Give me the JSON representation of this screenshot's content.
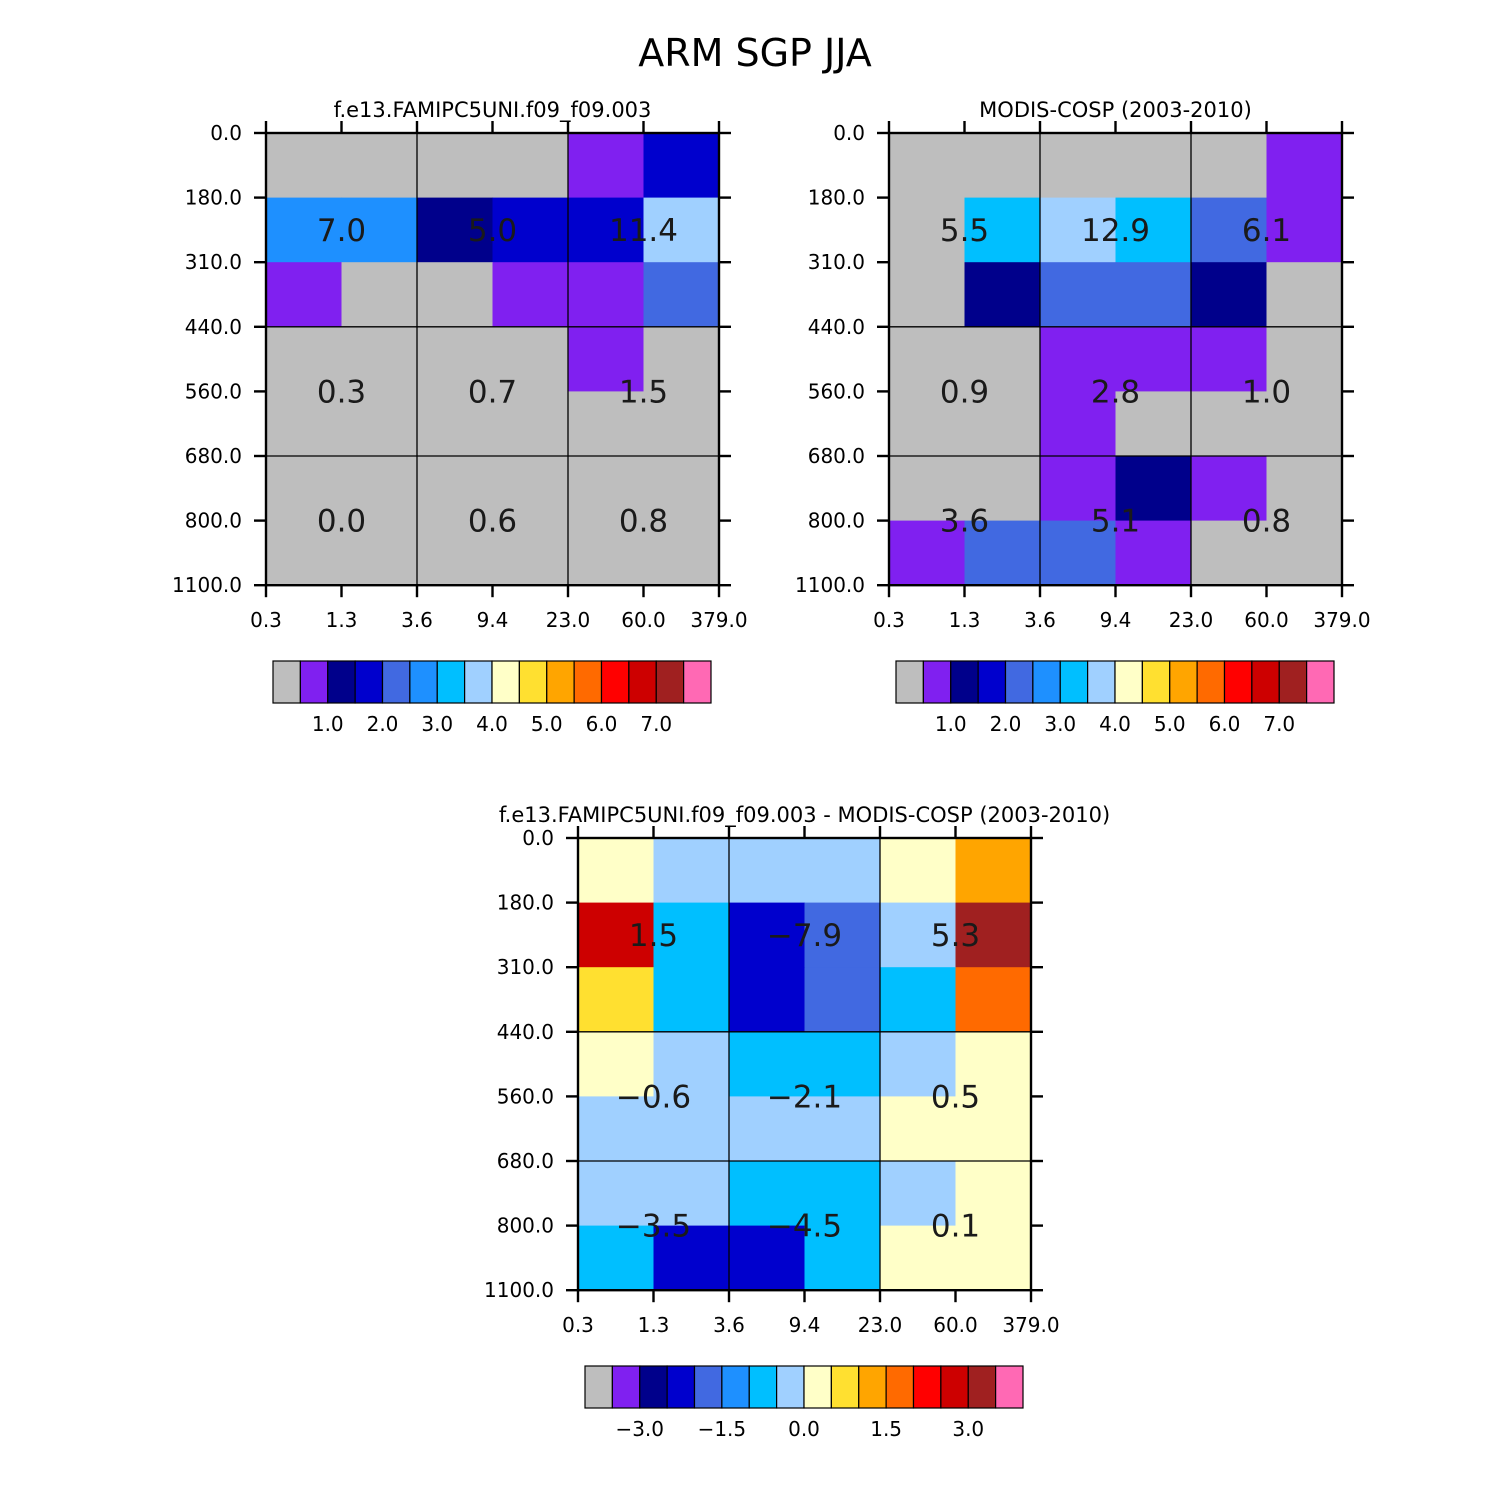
{
  "figure": {
    "title": "ARM SGP JJA"
  },
  "chart_data": [
    {
      "type": "heatmap",
      "title": "f.e13.FAMIPC5UNI.f09_f09.003",
      "x_ticks": [
        "0.3",
        "1.3",
        "3.6",
        "9.4",
        "23.0",
        "60.0",
        "379.0"
      ],
      "y_ticks": [
        "0.0",
        "180.0",
        "310.0",
        "440.0",
        "560.0",
        "680.0",
        "800.0",
        "1100.0"
      ],
      "cell_colors": [
        [
          "#bebebe",
          "#bebebe",
          "#bebebe",
          "#bebebe",
          "#8020f0",
          "#0000cd"
        ],
        [
          "#1e90ff",
          "#1e90ff",
          "#00008b",
          "#0000cd",
          "#0000cd",
          "#a0d0ff"
        ],
        [
          "#8020f0",
          "#bebebe",
          "#bebebe",
          "#8020f0",
          "#8020f0",
          "#4169e1"
        ],
        [
          "#bebebe",
          "#bebebe",
          "#bebebe",
          "#bebebe",
          "#8020f0",
          "#bebebe"
        ],
        [
          "#bebebe",
          "#bebebe",
          "#bebebe",
          "#bebebe",
          "#bebebe",
          "#bebebe"
        ],
        [
          "#bebebe",
          "#bebebe",
          "#bebebe",
          "#bebebe",
          "#bebebe",
          "#bebebe"
        ],
        [
          "#bebebe",
          "#bebebe",
          "#bebebe",
          "#bebebe",
          "#bebebe",
          "#bebebe"
        ]
      ],
      "block_labels": [
        [
          "7.0",
          "5.0",
          "11.4"
        ],
        [
          "0.3",
          "0.7",
          "1.5"
        ],
        [
          "0.0",
          "0.6",
          "0.8"
        ]
      ],
      "colorbar": {
        "colors": [
          "#bebebe",
          "#8020f0",
          "#00008b",
          "#0000cd",
          "#4169e1",
          "#1e90ff",
          "#00bfff",
          "#a0d0ff",
          "#ffffc8",
          "#ffe030",
          "#ffa500",
          "#ff6a00",
          "#ff0000",
          "#cd0000",
          "#a02020",
          "#ff69b4"
        ],
        "labels": [
          "1.0",
          "2.0",
          "3.0",
          "4.0",
          "5.0",
          "6.0",
          "7.0"
        ]
      }
    },
    {
      "type": "heatmap",
      "title": "MODIS-COSP (2003-2010)",
      "x_ticks": [
        "0.3",
        "1.3",
        "3.6",
        "9.4",
        "23.0",
        "60.0",
        "379.0"
      ],
      "y_ticks": [
        "0.0",
        "180.0",
        "310.0",
        "440.0",
        "560.0",
        "680.0",
        "800.0",
        "1100.0"
      ],
      "cell_colors": [
        [
          "#bebebe",
          "#bebebe",
          "#bebebe",
          "#bebebe",
          "#bebebe",
          "#8020f0"
        ],
        [
          "#bebebe",
          "#00bfff",
          "#a0d0ff",
          "#00bfff",
          "#4169e1",
          "#8020f0"
        ],
        [
          "#bebebe",
          "#00008b",
          "#4169e1",
          "#4169e1",
          "#00008b",
          "#bebebe"
        ],
        [
          "#bebebe",
          "#bebebe",
          "#8020f0",
          "#8020f0",
          "#8020f0",
          "#bebebe"
        ],
        [
          "#bebebe",
          "#bebebe",
          "#8020f0",
          "#bebebe",
          "#bebebe",
          "#bebebe"
        ],
        [
          "#bebebe",
          "#bebebe",
          "#8020f0",
          "#00008b",
          "#8020f0",
          "#bebebe"
        ],
        [
          "#8020f0",
          "#4169e1",
          "#4169e1",
          "#8020f0",
          "#bebebe",
          "#bebebe"
        ]
      ],
      "block_labels": [
        [
          "5.5",
          "12.9",
          "6.1"
        ],
        [
          "0.9",
          "2.8",
          "1.0"
        ],
        [
          "3.6",
          "5.1",
          "0.8"
        ]
      ],
      "colorbar": {
        "colors": [
          "#bebebe",
          "#8020f0",
          "#00008b",
          "#0000cd",
          "#4169e1",
          "#1e90ff",
          "#00bfff",
          "#a0d0ff",
          "#ffffc8",
          "#ffe030",
          "#ffa500",
          "#ff6a00",
          "#ff0000",
          "#cd0000",
          "#a02020",
          "#ff69b4"
        ],
        "labels": [
          "1.0",
          "2.0",
          "3.0",
          "4.0",
          "5.0",
          "6.0",
          "7.0"
        ]
      }
    },
    {
      "type": "heatmap",
      "title": "f.e13.FAMIPC5UNI.f09_f09.003 - MODIS-COSP (2003-2010)",
      "x_ticks": [
        "0.3",
        "1.3",
        "3.6",
        "9.4",
        "23.0",
        "60.0",
        "379.0"
      ],
      "y_ticks": [
        "0.0",
        "180.0",
        "310.0",
        "440.0",
        "560.0",
        "680.0",
        "800.0",
        "1100.0"
      ],
      "cell_colors": [
        [
          "#ffffc8",
          "#a0d0ff",
          "#a0d0ff",
          "#a0d0ff",
          "#ffffc8",
          "#ffa500"
        ],
        [
          "#cd0000",
          "#00bfff",
          "#0000cd",
          "#4169e1",
          "#a0d0ff",
          "#a02020"
        ],
        [
          "#ffe030",
          "#00bfff",
          "#0000cd",
          "#4169e1",
          "#00bfff",
          "#ff6a00"
        ],
        [
          "#ffffc8",
          "#a0d0ff",
          "#00bfff",
          "#00bfff",
          "#a0d0ff",
          "#ffffc8"
        ],
        [
          "#a0d0ff",
          "#a0d0ff",
          "#a0d0ff",
          "#a0d0ff",
          "#ffffc8",
          "#ffffc8"
        ],
        [
          "#a0d0ff",
          "#a0d0ff",
          "#00bfff",
          "#00bfff",
          "#a0d0ff",
          "#ffffc8"
        ],
        [
          "#00bfff",
          "#0000cd",
          "#0000cd",
          "#00bfff",
          "#ffffc8",
          "#ffffc8"
        ]
      ],
      "block_labels": [
        [
          "1.5",
          "−7.9",
          "5.3"
        ],
        [
          "−0.6",
          "−2.1",
          "0.5"
        ],
        [
          "−3.5",
          "−4.5",
          "0.1"
        ]
      ],
      "colorbar": {
        "colors": [
          "#bebebe",
          "#8020f0",
          "#00008b",
          "#0000cd",
          "#4169e1",
          "#1e90ff",
          "#00bfff",
          "#a0d0ff",
          "#ffffc8",
          "#ffe030",
          "#ffa500",
          "#ff6a00",
          "#ff0000",
          "#cd0000",
          "#a02020",
          "#ff69b4"
        ],
        "labels": [
          "−3.0",
          "−1.5",
          "0.0",
          "1.5",
          "3.0"
        ]
      }
    }
  ]
}
